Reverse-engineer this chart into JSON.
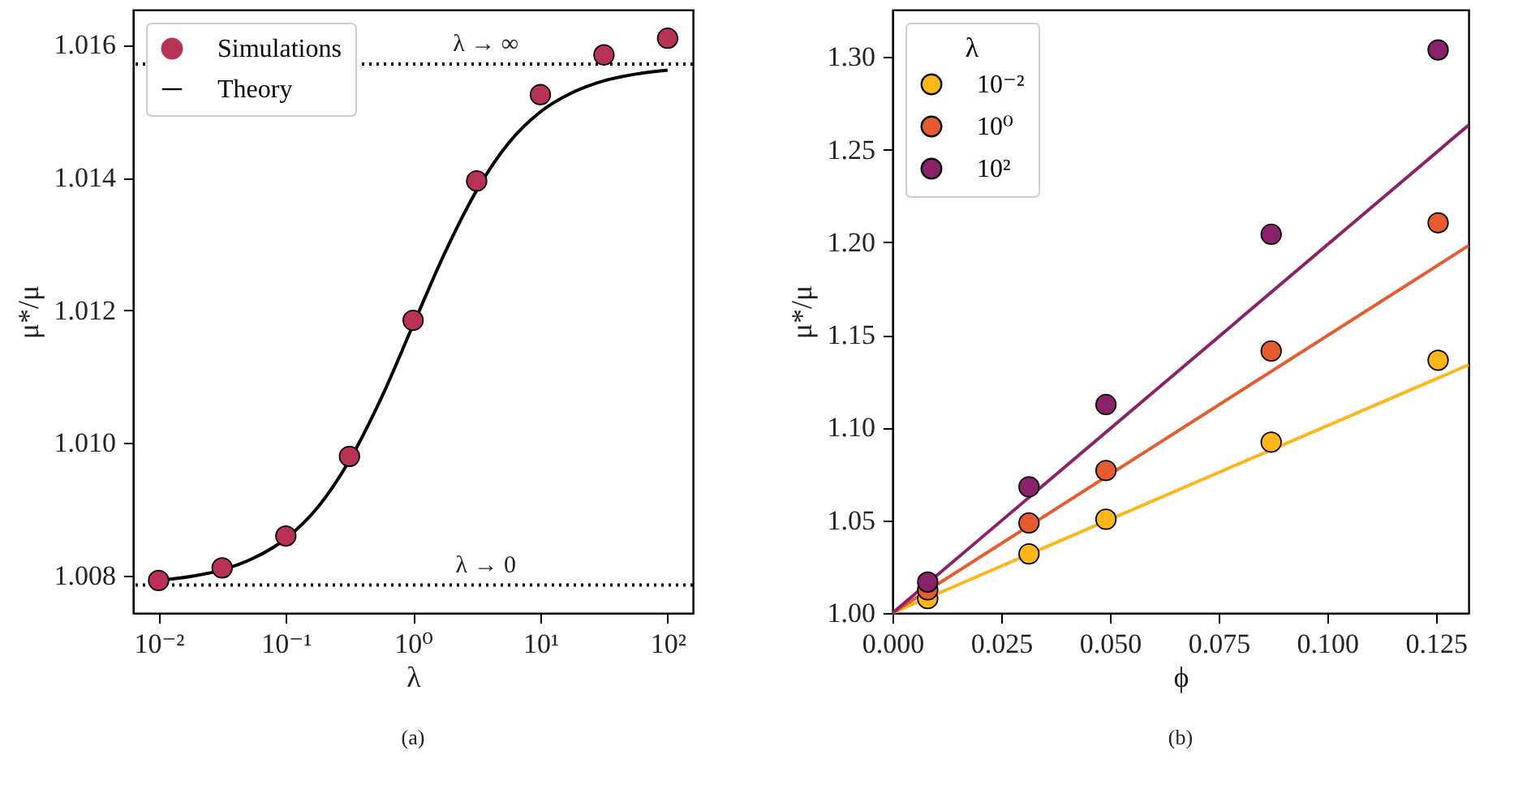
{
  "chart_data": [
    {
      "type": "scatter",
      "xlabel": "λ",
      "ylabel": "μ*/μ",
      "log": "x",
      "legend": "top left",
      "grid": false,
      "xlim": [
        0.0063,
        158
      ],
      "xticks": [
        {
          "value": 0.01,
          "label": "10⁻²"
        },
        {
          "value": 0.1,
          "label": "10⁻¹"
        },
        {
          "value": 1,
          "label": "10⁰"
        },
        {
          "value": 10,
          "label": "10¹"
        },
        {
          "value": 100,
          "label": "10²"
        }
      ],
      "ylim": [
        1.00744,
        1.01653
      ],
      "yticks": [
        1.008,
        {
          "value": 1.01,
          "label": "1.010"
        },
        1.012,
        1.014,
        1.016
      ],
      "series": [
        {
          "name": "Simulations",
          "marker": "circle",
          "color": "#b83256",
          "x": [
            0.01,
            0.0316,
            0.1,
            0.316,
            1,
            3.16,
            10,
            31.6,
            100
          ],
          "values": [
            1.00793,
            1.00812,
            1.0086,
            1.0098,
            1.01185,
            1.01395,
            1.01525,
            1.01585,
            1.0161
          ]
        },
        {
          "name": "Theory",
          "type": "line",
          "color": "#000000",
          "x": [
            0.01,
            0.01778,
            0.03162,
            0.05623,
            0.1,
            0.1778,
            0.3162,
            0.5623,
            1,
            1.778,
            3.162,
            5.623,
            10,
            17.78,
            31.62,
            56.23,
            100
          ],
          "values": [
            1.00793,
            1.00799,
            1.00809,
            1.00827,
            1.00856,
            1.00903,
            1.00974,
            1.01068,
            1.01178,
            1.01287,
            1.01381,
            1.01452,
            1.01499,
            1.01528,
            1.01546,
            1.01556,
            1.01562
          ]
        }
      ],
      "ref_lines": [
        {
          "axis": "y",
          "value": 1.01571,
          "label": "λ → ∞",
          "color": "#000000",
          "line_style": "dotted"
        },
        {
          "axis": "y",
          "value": 1.00786,
          "label": "λ → 0",
          "color": "#000000",
          "line_style": "dotted"
        }
      ],
      "annotations": [
        "(a)"
      ]
    },
    {
      "type": "scatter",
      "xlabel": "ϕ",
      "ylabel": "μ*/μ",
      "legend_title": "λ",
      "legend": "top left",
      "grid": false,
      "xlim": [
        0,
        0.1325
      ],
      "xticks": [
        {
          "value": 0,
          "label": "0.000"
        },
        0.025,
        {
          "value": 0.05,
          "label": "0.050"
        },
        0.075,
        {
          "value": 0.1,
          "label": "0.100"
        },
        0.125
      ],
      "ylim": [
        1.0,
        1.3256
      ],
      "yticks": [
        {
          "value": 1,
          "label": "1.00"
        },
        1.05,
        {
          "value": 1.1,
          "label": "1.10"
        },
        1.15,
        {
          "value": 1.2,
          "label": "1.20"
        },
        1.25,
        {
          "value": 1.3,
          "label": "1.30"
        }
      ],
      "series": [
        {
          "name": "10⁻²",
          "marker": "circle",
          "color": "#fbb61a",
          "x": [
            0.0081,
            0.0314,
            0.0491,
            0.0871,
            0.1255
          ],
          "values": [
            1.0078,
            1.0319,
            1.0506,
            1.0922,
            1.1364
          ]
        },
        {
          "name": "10⁰",
          "marker": "circle",
          "color": "#e55c30",
          "x": [
            0.0081,
            0.0314,
            0.0491,
            0.0871,
            0.1255
          ],
          "values": [
            1.0125,
            1.0486,
            1.0769,
            1.1414,
            1.2106
          ]
        },
        {
          "name": "10²",
          "marker": "circle",
          "color": "#8a226a",
          "x": [
            0.0081,
            0.0314,
            0.0491,
            0.0871,
            0.1255
          ],
          "values": [
            1.0167,
            1.0681,
            1.1125,
            1.2044,
            1.3039
          ]
        },
        {
          "type": "line",
          "color": "#fbb61a",
          "x": [
            0,
            0.1325
          ],
          "values": [
            1.0,
            1.1339
          ]
        },
        {
          "type": "line",
          "color": "#e55c30",
          "x": [
            0,
            0.1325
          ],
          "values": [
            1.0,
            1.1983
          ]
        },
        {
          "type": "line",
          "color": "#8a226a",
          "x": [
            0,
            0.1325
          ],
          "values": [
            1.0,
            1.2633
          ]
        }
      ],
      "annotations": [
        "(b)"
      ]
    }
  ]
}
